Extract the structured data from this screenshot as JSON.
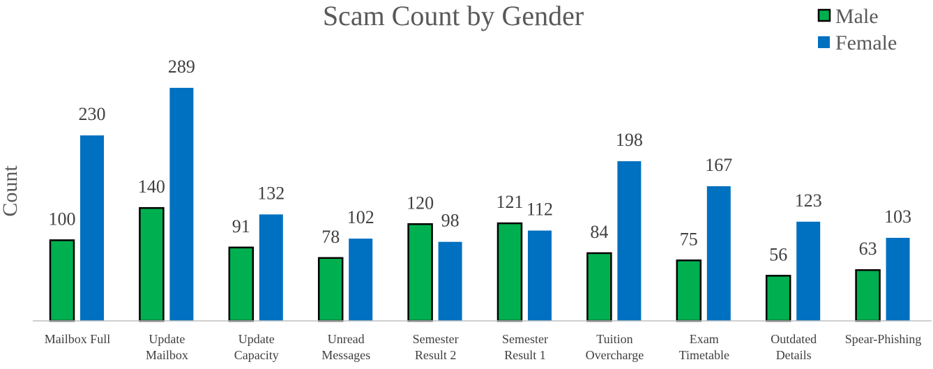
{
  "chart_data": {
    "type": "bar",
    "title": "Scam Count by Gender",
    "xlabel": "",
    "ylabel": "Count",
    "ylim": [
      0,
      350
    ],
    "grid": false,
    "legend_position": "top-right",
    "categories": [
      [
        "Mailbox Full"
      ],
      [
        "Update",
        "Mailbox"
      ],
      [
        "Update",
        "Capacity"
      ],
      [
        "Unread",
        "Messages"
      ],
      [
        "Semester",
        "Result 2"
      ],
      [
        "Semester",
        "Result 1"
      ],
      [
        "Tuition",
        "Overcharge"
      ],
      [
        "Exam",
        "Timetable"
      ],
      [
        "Outdated",
        "Details"
      ],
      [
        "Spear-Phishing"
      ]
    ],
    "series": [
      {
        "name": "Male",
        "color": "#00B050",
        "values": [
          100,
          140,
          91,
          78,
          120,
          121,
          84,
          75,
          56,
          63
        ]
      },
      {
        "name": "Female",
        "color": "#0070C0",
        "values": [
          230,
          289,
          132,
          102,
          98,
          112,
          198,
          167,
          123,
          103
        ]
      }
    ]
  }
}
